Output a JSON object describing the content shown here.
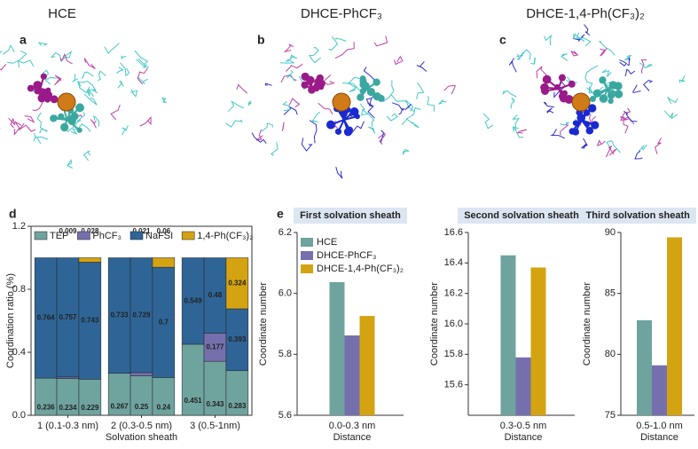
{
  "panels": [
    {
      "label": "a",
      "title": "HCE"
    },
    {
      "label": "b",
      "title": "DHCE-PhCF₃"
    },
    {
      "label": "c",
      "title": "DHCE-1,4-Ph(CF₃)₂"
    }
  ],
  "chart_data": [
    {
      "type": "stacked_bar",
      "panel_label": "d",
      "xlabel": "Solvation sheath",
      "ylabel": "Coordination ratio (%)",
      "categories": [
        "1 (0.1-0.3 nm)",
        "2 (0.3-0.5 nm)",
        "3 (0.5-1nm)"
      ],
      "ylim": [
        0,
        1.2
      ],
      "yticks": [
        {
          "value": 0,
          "label": "0.0"
        },
        0.4,
        0.8,
        1.2
      ],
      "legend": "top",
      "series": [
        {
          "name": "TEP",
          "color": "#6fa39e",
          "values": [
            [
              0.236,
              0.234,
              0.229
            ],
            [
              0.267,
              0.25,
              0.24
            ],
            [
              0.451,
              0.343,
              0.283
            ]
          ]
        },
        {
          "name": "PhCF₃",
          "color": "#7570ad",
          "values": [
            [
              null,
              0.009,
              null
            ],
            [
              null,
              0.021,
              null
            ],
            [
              null,
              0.177,
              null
            ]
          ]
        },
        {
          "name": "NaFSI",
          "color": "#2f6596",
          "values": [
            [
              0.764,
              0.757,
              0.743
            ],
            [
              0.733,
              0.729,
              0.7
            ],
            [
              0.549,
              0.48,
              0.393
            ]
          ]
        },
        {
          "name": "1,4-Ph(CF₃)₂",
          "color": "#d4a312",
          "values": [
            [
              null,
              null,
              0.028
            ],
            [
              null,
              null,
              0.06
            ],
            [
              null,
              null,
              0.324
            ]
          ]
        }
      ]
    },
    {
      "type": "bar",
      "panel_label": "e",
      "title": "First solvation sheath",
      "xlabel": "Distance",
      "ylabel": "Coordinate number",
      "categories": [
        "0.0-0.3 nm"
      ],
      "ylim": [
        5.6,
        6.2
      ],
      "yticks": [
        5.6,
        5.8,
        {
          "value": 6.0,
          "label": "6.0"
        },
        6.2
      ],
      "legend": "upper left",
      "series": [
        {
          "name": "HCE",
          "color": "#6fa39e",
          "values": [
            6.037
          ]
        },
        {
          "name": "DHCE-PhCF₃",
          "color": "#7570ad",
          "values": [
            5.862
          ]
        },
        {
          "name": "DHCE-1,4-Ph(CF₃)₂",
          "color": "#d4a312",
          "values": [
            5.926
          ]
        }
      ]
    },
    {
      "type": "bar",
      "title": "Second solvation sheath",
      "xlabel": "Distance",
      "ylabel": "Coordinate number",
      "categories": [
        "0.3-0.5 nm"
      ],
      "ylim": [
        15.4,
        16.6
      ],
      "yticks": [
        15.6,
        15.8,
        {
          "value": 16.0,
          "label": "16.0"
        },
        16.2,
        16.4,
        16.6
      ],
      "series": [
        {
          "color": "#6fa39e",
          "values": [
            16.45
          ]
        },
        {
          "color": "#7570ad",
          "values": [
            15.78
          ]
        },
        {
          "color": "#d4a312",
          "values": [
            16.37
          ]
        }
      ]
    },
    {
      "type": "bar",
      "title": "Third solvation sheath",
      "xlabel": "Distance",
      "ylabel": "Coordinate number",
      "categories": [
        "0.5-1.0 nm"
      ],
      "ylim": [
        75,
        90
      ],
      "yticks": [
        75,
        80,
        85,
        90
      ],
      "series": [
        {
          "color": "#6fa39e",
          "values": [
            82.8
          ]
        },
        {
          "color": "#7570ad",
          "values": [
            79.1
          ]
        },
        {
          "color": "#d4a312",
          "values": [
            89.6
          ]
        }
      ]
    }
  ]
}
